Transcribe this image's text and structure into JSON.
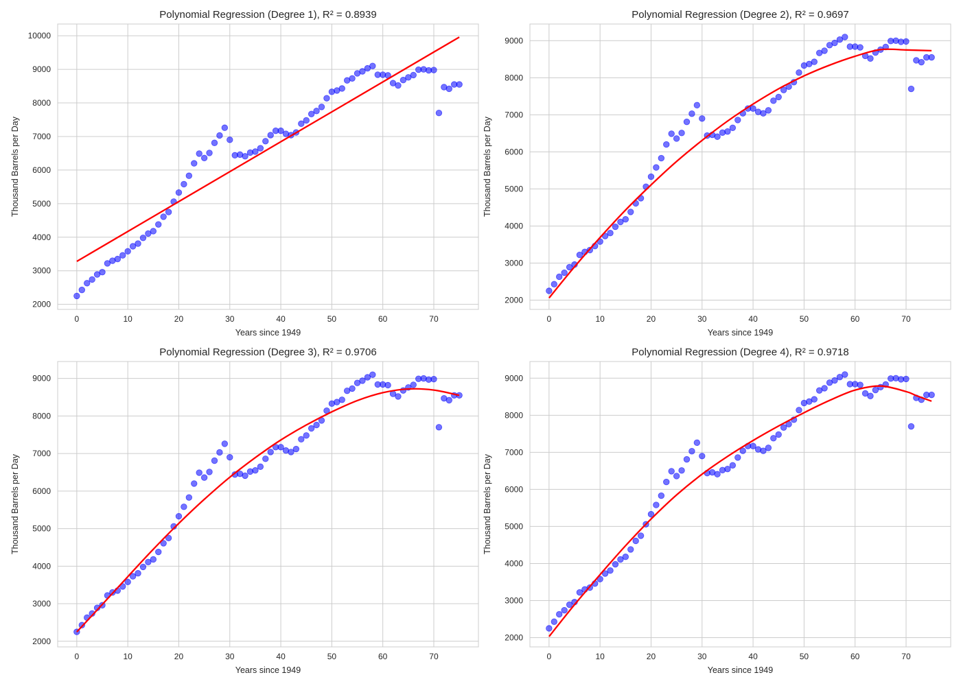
{
  "figure": {
    "point_color": "#0000ff",
    "fit_color": "#ff0000",
    "grid_color": "#cccccc"
  },
  "chart_data": [
    {
      "type": "scatter",
      "title": "Polynomial Regression (Degree 1), R² = 0.8939",
      "xlabel": "Years since 1949",
      "ylabel": "Thousand Barrels per Day",
      "xlim": [
        -3.75,
        78.75
      ],
      "ylim": [
        1850,
        10350
      ],
      "xticks": [
        0,
        10,
        20,
        30,
        40,
        50,
        60,
        70
      ],
      "yticks": [
        2000,
        3000,
        4000,
        5000,
        6000,
        7000,
        8000,
        9000,
        10000
      ],
      "grid": true,
      "series": [
        {
          "kind": "points",
          "x": [
            0,
            1,
            2,
            3,
            4,
            5,
            6,
            7,
            8,
            9,
            10,
            11,
            12,
            13,
            14,
            15,
            16,
            17,
            18,
            19,
            20,
            21,
            22,
            23,
            24,
            25,
            26,
            27,
            28,
            29,
            30,
            31,
            32,
            33,
            34,
            35,
            36,
            37,
            38,
            39,
            40,
            41,
            42,
            43,
            44,
            45,
            46,
            47,
            48,
            49,
            50,
            51,
            52,
            53,
            54,
            55,
            56,
            57,
            58,
            59,
            60,
            61,
            62,
            63,
            64,
            65,
            66,
            67,
            68,
            69,
            70,
            71,
            72,
            73,
            74,
            75
          ],
          "y": [
            2250,
            2430,
            2630,
            2740,
            2890,
            2960,
            3220,
            3300,
            3350,
            3460,
            3580,
            3730,
            3810,
            3980,
            4110,
            4180,
            4380,
            4610,
            4750,
            5060,
            5330,
            5580,
            5830,
            6200,
            6490,
            6360,
            6510,
            6810,
            7030,
            7260,
            6900,
            6440,
            6460,
            6410,
            6520,
            6550,
            6650,
            6860,
            7040,
            7170,
            7170,
            7080,
            7040,
            7120,
            7380,
            7480,
            7670,
            7760,
            7880,
            8140,
            8330,
            8370,
            8430,
            8670,
            8730,
            8880,
            8940,
            9030,
            9100,
            8840,
            8840,
            8820,
            8590,
            8520,
            8680,
            8760,
            8830,
            8990,
            9000,
            8970,
            8980,
            7700,
            8470,
            8420,
            8550,
            8550
          ]
        },
        {
          "kind": "fit",
          "x": [
            0,
            75
          ],
          "y": [
            3280,
            9960
          ]
        }
      ]
    },
    {
      "type": "scatter",
      "title": "Polynomial Regression (Degree 2), R² = 0.9697",
      "xlabel": "Years since 1949",
      "ylabel": "Thousand Barrels per Day",
      "xlim": [
        -3.75,
        78.75
      ],
      "ylim": [
        1750,
        9450
      ],
      "xticks": [
        0,
        10,
        20,
        30,
        40,
        50,
        60,
        70
      ],
      "yticks": [
        2000,
        3000,
        4000,
        5000,
        6000,
        7000,
        8000,
        9000
      ],
      "grid": true,
      "series": [
        {
          "kind": "points",
          "x": [
            0,
            1,
            2,
            3,
            4,
            5,
            6,
            7,
            8,
            9,
            10,
            11,
            12,
            13,
            14,
            15,
            16,
            17,
            18,
            19,
            20,
            21,
            22,
            23,
            24,
            25,
            26,
            27,
            28,
            29,
            30,
            31,
            32,
            33,
            34,
            35,
            36,
            37,
            38,
            39,
            40,
            41,
            42,
            43,
            44,
            45,
            46,
            47,
            48,
            49,
            50,
            51,
            52,
            53,
            54,
            55,
            56,
            57,
            58,
            59,
            60,
            61,
            62,
            63,
            64,
            65,
            66,
            67,
            68,
            69,
            70,
            71,
            72,
            73,
            74,
            75
          ],
          "y": [
            2250,
            2430,
            2630,
            2740,
            2890,
            2960,
            3220,
            3300,
            3350,
            3460,
            3580,
            3730,
            3810,
            3980,
            4110,
            4180,
            4380,
            4610,
            4750,
            5060,
            5330,
            5580,
            5830,
            6200,
            6490,
            6360,
            6510,
            6810,
            7030,
            7260,
            6900,
            6440,
            6460,
            6410,
            6520,
            6550,
            6650,
            6860,
            7040,
            7170,
            7170,
            7080,
            7040,
            7120,
            7380,
            7480,
            7670,
            7760,
            7880,
            8140,
            8330,
            8370,
            8430,
            8670,
            8730,
            8880,
            8940,
            9030,
            9100,
            8840,
            8840,
            8820,
            8590,
            8520,
            8680,
            8760,
            8830,
            8990,
            9000,
            8970,
            8980,
            7700,
            8470,
            8420,
            8550,
            8550
          ]
        },
        {
          "kind": "fit",
          "x": [
            0,
            5,
            10,
            15,
            20,
            25,
            30,
            35,
            40,
            45,
            50,
            55,
            60,
            65,
            70,
            75
          ],
          "y": [
            2060,
            2900,
            3690,
            4430,
            5110,
            5740,
            6310,
            6830,
            7290,
            7700,
            8050,
            8340,
            8580,
            8760,
            8750,
            8730
          ]
        }
      ]
    },
    {
      "type": "scatter",
      "title": "Polynomial Regression (Degree 3), R² = 0.9706",
      "xlabel": "Years since 1949",
      "ylabel": "Thousand Barrels per Day",
      "xlim": [
        -3.75,
        78.75
      ],
      "ylim": [
        1850,
        9450
      ],
      "xticks": [
        0,
        10,
        20,
        30,
        40,
        50,
        60,
        70
      ],
      "yticks": [
        2000,
        3000,
        4000,
        5000,
        6000,
        7000,
        8000,
        9000
      ],
      "grid": true,
      "series": [
        {
          "kind": "points",
          "x": [
            0,
            1,
            2,
            3,
            4,
            5,
            6,
            7,
            8,
            9,
            10,
            11,
            12,
            13,
            14,
            15,
            16,
            17,
            18,
            19,
            20,
            21,
            22,
            23,
            24,
            25,
            26,
            27,
            28,
            29,
            30,
            31,
            32,
            33,
            34,
            35,
            36,
            37,
            38,
            39,
            40,
            41,
            42,
            43,
            44,
            45,
            46,
            47,
            48,
            49,
            50,
            51,
            52,
            53,
            54,
            55,
            56,
            57,
            58,
            59,
            60,
            61,
            62,
            63,
            64,
            65,
            66,
            67,
            68,
            69,
            70,
            71,
            72,
            73,
            74,
            75
          ],
          "y": [
            2250,
            2430,
            2630,
            2740,
            2890,
            2960,
            3220,
            3300,
            3350,
            3460,
            3580,
            3730,
            3810,
            3980,
            4110,
            4180,
            4380,
            4610,
            4750,
            5060,
            5330,
            5580,
            5830,
            6200,
            6490,
            6360,
            6510,
            6810,
            7030,
            7260,
            6900,
            6440,
            6460,
            6410,
            6520,
            6550,
            6650,
            6860,
            7040,
            7170,
            7170,
            7080,
            7040,
            7120,
            7380,
            7480,
            7670,
            7760,
            7880,
            8140,
            8330,
            8370,
            8430,
            8670,
            8730,
            8880,
            8940,
            9030,
            9100,
            8840,
            8840,
            8820,
            8590,
            8520,
            8680,
            8760,
            8830,
            8990,
            9000,
            8970,
            8980,
            7700,
            8470,
            8420,
            8550,
            8550
          ]
        },
        {
          "kind": "fit",
          "x": [
            0,
            5,
            10,
            15,
            20,
            25,
            30,
            35,
            40,
            45,
            50,
            55,
            60,
            65,
            70,
            75
          ],
          "y": [
            2250,
            2980,
            3720,
            4450,
            5140,
            5780,
            6370,
            6890,
            7360,
            7760,
            8110,
            8410,
            8620,
            8720,
            8690,
            8550
          ]
        }
      ]
    },
    {
      "type": "scatter",
      "title": "Polynomial Regression (Degree 4), R² = 0.9718",
      "xlabel": "Years since 1949",
      "ylabel": "Thousand Barrels per Day",
      "xlim": [
        -3.75,
        78.75
      ],
      "ylim": [
        1750,
        9450
      ],
      "xticks": [
        0,
        10,
        20,
        30,
        40,
        50,
        60,
        70
      ],
      "yticks": [
        2000,
        3000,
        4000,
        5000,
        6000,
        7000,
        8000,
        9000
      ],
      "grid": true,
      "series": [
        {
          "kind": "points",
          "x": [
            0,
            1,
            2,
            3,
            4,
            5,
            6,
            7,
            8,
            9,
            10,
            11,
            12,
            13,
            14,
            15,
            16,
            17,
            18,
            19,
            20,
            21,
            22,
            23,
            24,
            25,
            26,
            27,
            28,
            29,
            30,
            31,
            32,
            33,
            34,
            35,
            36,
            37,
            38,
            39,
            40,
            41,
            42,
            43,
            44,
            45,
            46,
            47,
            48,
            49,
            50,
            51,
            52,
            53,
            54,
            55,
            56,
            57,
            58,
            59,
            60,
            61,
            62,
            63,
            64,
            65,
            66,
            67,
            68,
            69,
            70,
            71,
            72,
            73,
            74,
            75
          ],
          "y": [
            2250,
            2430,
            2630,
            2740,
            2890,
            2960,
            3220,
            3300,
            3350,
            3460,
            3580,
            3730,
            3810,
            3980,
            4110,
            4180,
            4380,
            4610,
            4750,
            5060,
            5330,
            5580,
            5830,
            6200,
            6490,
            6360,
            6510,
            6810,
            7030,
            7260,
            6900,
            6440,
            6460,
            6410,
            6520,
            6550,
            6650,
            6860,
            7040,
            7170,
            7170,
            7080,
            7040,
            7120,
            7380,
            7480,
            7670,
            7760,
            7880,
            8140,
            8330,
            8370,
            8430,
            8670,
            8730,
            8880,
            8940,
            9030,
            9100,
            8840,
            8840,
            8820,
            8590,
            8520,
            8680,
            8760,
            8830,
            8990,
            9000,
            8970,
            8980,
            7700,
            8470,
            8420,
            8550,
            8550
          ]
        },
        {
          "kind": "fit",
          "x": [
            0,
            5,
            10,
            15,
            20,
            25,
            30,
            35,
            40,
            45,
            50,
            55,
            60,
            65,
            70,
            72,
            75
          ],
          "y": [
            2030,
            2890,
            3700,
            4480,
            5200,
            5850,
            6410,
            6890,
            7320,
            7710,
            8070,
            8400,
            8680,
            8790,
            8640,
            8530,
            8380
          ]
        }
      ]
    }
  ]
}
